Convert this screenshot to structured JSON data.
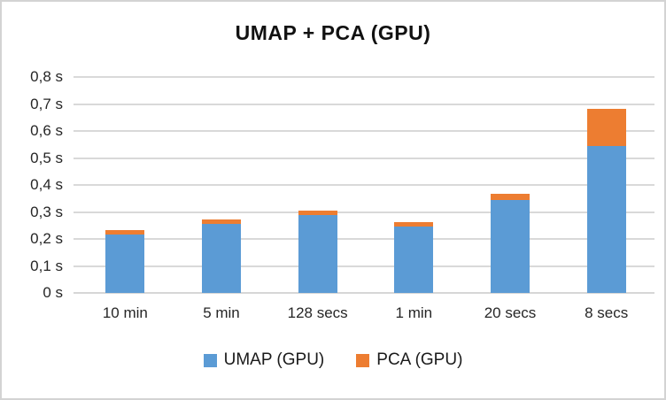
{
  "chart_data": {
    "type": "bar",
    "stacked": true,
    "title": "UMAP + PCA (GPU)",
    "categories": [
      "10 min",
      "5 min",
      "128 secs",
      "1 min",
      "20 secs",
      "8 secs"
    ],
    "series": [
      {
        "name": "UMAP (GPU)",
        "color": "#5B9BD5",
        "values": [
          0.215,
          0.255,
          0.288,
          0.245,
          0.343,
          0.543
        ]
      },
      {
        "name": "PCA (GPU)",
        "color": "#ED7D31",
        "values": [
          0.017,
          0.018,
          0.017,
          0.017,
          0.023,
          0.14
        ]
      }
    ],
    "ylim": [
      0,
      0.8
    ],
    "ytick_step": 0.1,
    "ytick_labels": [
      "0 s",
      "0,1 s",
      "0,2 s",
      "0,3 s",
      "0,4 s",
      "0,5 s",
      "0,6 s",
      "0,7 s",
      "0,8 s"
    ],
    "value_unit": "s",
    "grid": true,
    "legend_position": "bottom",
    "colors": {
      "gridline": "#D9D9D9",
      "axis_line": "#D6D6D6",
      "frame_border": "#D3D3D3",
      "label_text": "#262626",
      "title_text": "#111111"
    }
  }
}
